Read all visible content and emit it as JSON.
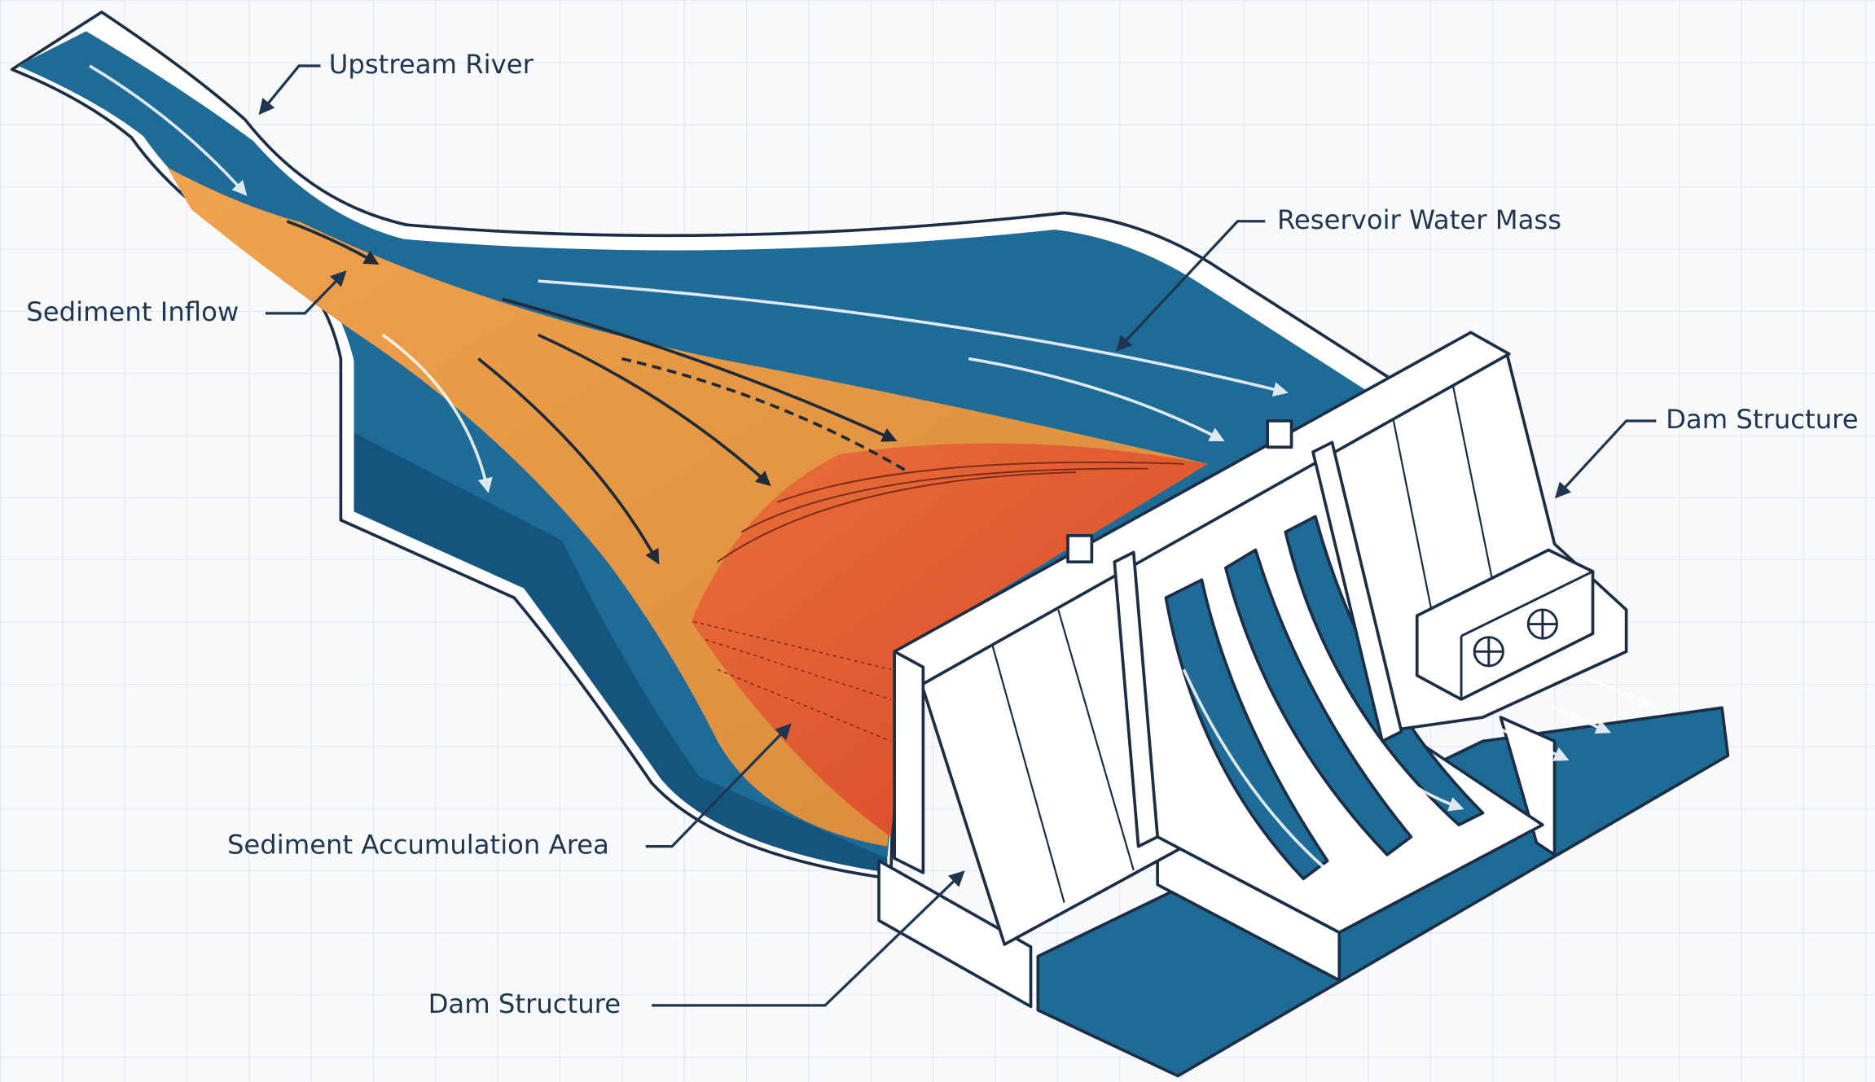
{
  "labels": {
    "upstream_river": "Upstream River",
    "sediment_inflow": "Sediment Inflow",
    "reservoir_water_mass": "Reservoir Water Mass",
    "dam_structure_right": "Dam Structure",
    "sediment_accumulation_area": "Sediment Accumulation Area",
    "dam_structure_bottom": "Dam Structure"
  }
}
